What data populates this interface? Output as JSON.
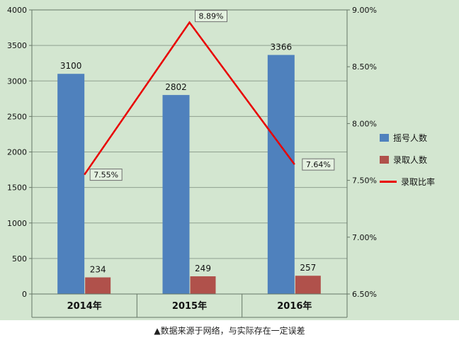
{
  "caption": "▲数据来源于网络，与实际存在一定误差",
  "chart_data": {
    "type": "combo",
    "title": "",
    "categories": [
      "2014年",
      "2015年",
      "2016年"
    ],
    "series": [
      {
        "name": "摇号人数",
        "type": "bar",
        "axis": "left",
        "color": "#4f81bd",
        "values": [
          3100,
          2802,
          3366
        ],
        "data_labels": [
          "3100",
          "2802",
          "3366"
        ]
      },
      {
        "name": "录取人数",
        "type": "bar",
        "axis": "left",
        "color": "#b0514b",
        "values": [
          234,
          249,
          257
        ],
        "data_labels": [
          "234",
          "249",
          "257"
        ]
      },
      {
        "name": "录取比率",
        "type": "line",
        "axis": "right",
        "color": "#e80000",
        "values": [
          7.55,
          8.89,
          7.64
        ],
        "data_labels": [
          "7.55%",
          "8.89%",
          "7.64%"
        ]
      }
    ],
    "left_axis": {
      "min": 0,
      "max": 4000,
      "step": 500,
      "tick_labels": [
        "0",
        "500",
        "1000",
        "1500",
        "2000",
        "2500",
        "3000",
        "3500",
        "4000"
      ]
    },
    "right_axis": {
      "min": 6.5,
      "max": 9.0,
      "step": 0.5,
      "tick_labels": [
        "6.50%",
        "7.00%",
        "7.50%",
        "8.00%",
        "8.50%",
        "9.00%"
      ]
    },
    "grid": true,
    "legend_position": "right",
    "colors": {
      "background": "#d3e6d0",
      "gridline": "#8fa08f",
      "frame": "#667766",
      "label_box_bg": "#e4f1e0",
      "label_box_border": "#6f6f6f"
    }
  }
}
